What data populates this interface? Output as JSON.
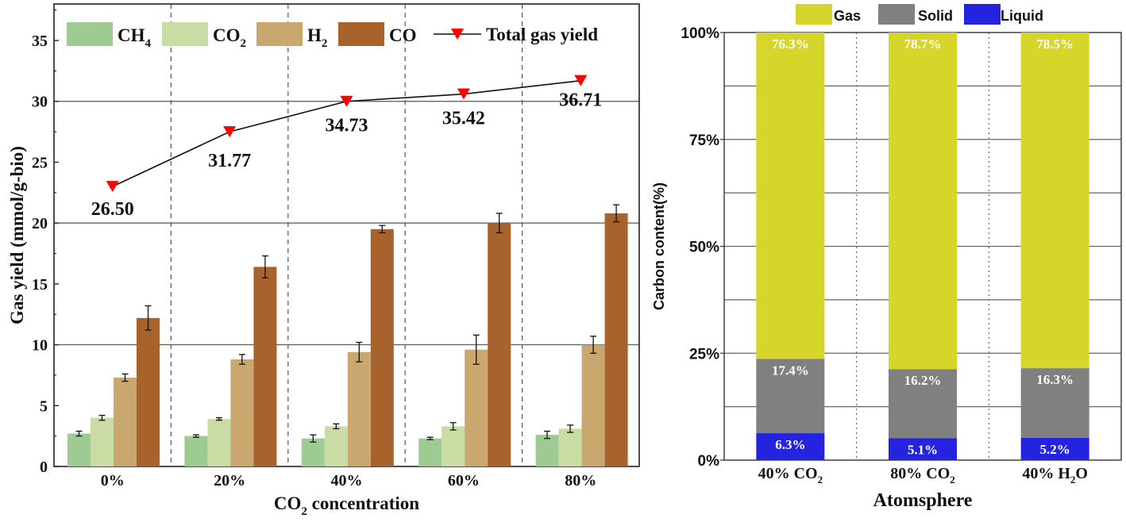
{
  "chart_data": [
    {
      "type": "bar",
      "categories": [
        "0%",
        "20%",
        "40%",
        "60%",
        "80%"
      ],
      "xlabel_parts": [
        "CO",
        "2",
        " concentration"
      ],
      "ylabel": "Gas yield (mmol/g-bio)",
      "ylim": [
        0,
        38
      ],
      "yticks": [
        0,
        5,
        10,
        15,
        20,
        25,
        30,
        35
      ],
      "series": [
        {
          "name": "CH4",
          "label": "CH",
          "sub": "4",
          "color": "#9dcb92",
          "values": [
            2.7,
            2.5,
            2.3,
            2.3,
            2.6
          ],
          "errors": [
            0.2,
            0.1,
            0.3,
            0.1,
            0.3
          ]
        },
        {
          "name": "CO2",
          "label": "CO",
          "sub": "2",
          "color": "#c8dca3",
          "values": [
            4.0,
            3.9,
            3.3,
            3.3,
            3.1
          ],
          "errors": [
            0.2,
            0.1,
            0.2,
            0.3,
            0.3
          ]
        },
        {
          "name": "H2",
          "label": "H",
          "sub": "2",
          "color": "#c9a76f",
          "values": [
            7.3,
            8.8,
            9.4,
            9.6,
            10.0
          ],
          "errors": [
            0.3,
            0.4,
            0.8,
            1.2,
            0.7
          ]
        },
        {
          "name": "CO",
          "label": "CO",
          "sub": "",
          "color": "#a8622c",
          "values": [
            12.2,
            16.4,
            19.5,
            20.0,
            20.8
          ],
          "errors": [
            1.0,
            0.9,
            0.3,
            0.8,
            0.7
          ]
        }
      ],
      "line_series": {
        "name": "Total gas yield",
        "color": "#ff0000",
        "display_values": [
          23.0,
          27.5,
          30.0,
          30.6,
          31.7
        ],
        "data_labels": [
          "26.50",
          "31.77",
          "34.73",
          "35.42",
          "36.71"
        ]
      },
      "grid": "horizontal and vertical dashed separators",
      "legend": "top"
    },
    {
      "type": "bar",
      "stacked": true,
      "categories": [
        {
          "main": "40% CO",
          "sub": "2"
        },
        {
          "main": "80% CO",
          "sub": "2"
        },
        {
          "main": "40% H",
          "sub": "2",
          "tail": "O"
        }
      ],
      "xlabel": "Atomsphere",
      "ylabel": "Carbon content(%)",
      "ylim": [
        0,
        100
      ],
      "yticks": [
        "0%",
        "25%",
        "50%",
        "75%",
        "100%"
      ],
      "series": [
        {
          "name": "Liquid",
          "color": "#2424e0",
          "values": [
            6.3,
            5.1,
            5.2
          ],
          "labels": [
            "6.3%",
            "5.1%",
            "5.2%"
          ]
        },
        {
          "name": "Solid",
          "color": "#808080",
          "values": [
            17.4,
            16.2,
            16.3
          ],
          "labels": [
            "17.4%",
            "16.2%",
            "16.3%"
          ]
        },
        {
          "name": "Gas",
          "color": "#d6d62a",
          "values": [
            76.3,
            78.7,
            78.5
          ],
          "labels": [
            "76.3%",
            "78.7%",
            "78.5%"
          ]
        }
      ],
      "legend_order": [
        "Gas",
        "Solid",
        "Liquid"
      ],
      "grid": true,
      "legend": "top"
    }
  ]
}
